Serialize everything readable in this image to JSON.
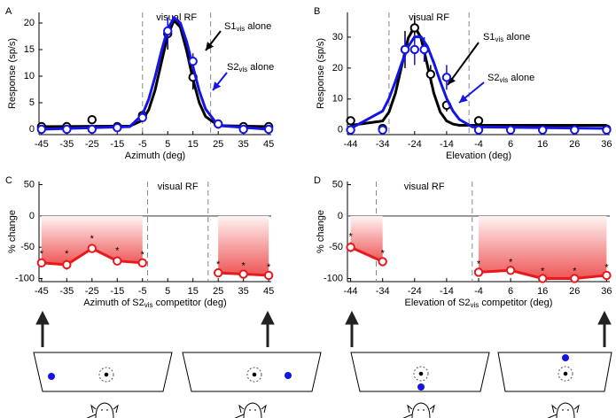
{
  "chart_data": [
    {
      "type": "line",
      "panel": "A",
      "xlabel": "Azimuth (deg)",
      "ylabel": "Response (sp/s)",
      "xlim": [
        -46,
        46
      ],
      "ylim": [
        -1,
        22
      ],
      "xticks": [
        -45,
        -35,
        -25,
        -15,
        -5,
        5,
        15,
        25,
        35,
        45
      ],
      "yticks": [
        0,
        5,
        10,
        15,
        20
      ],
      "region": [
        -5,
        22
      ],
      "region_label": "visual RF",
      "series": [
        {
          "name": "S1vis alone",
          "color": "#000000",
          "x": [
            -45,
            -35,
            -25,
            -15,
            -5,
            5,
            15,
            25,
            35,
            45
          ],
          "values": [
            0.5,
            0.5,
            1.8,
            0.5,
            2.6,
            18,
            9.8,
            1,
            0.5,
            0.5
          ],
          "errors": [
            0.2,
            0.2,
            0.4,
            0.2,
            0.5,
            3,
            2.3,
            0.3,
            0.2,
            0.2
          ],
          "fit": {
            "x": [
              -45,
              -10,
              -5,
              -2.5,
              0,
              2.5,
              5,
              7.5,
              10,
              12.5,
              15,
              17.5,
              20,
              25,
              45
            ],
            "values": [
              0.5,
              0.6,
              1.7,
              3.7,
              7.4,
              12.6,
              17.7,
              20.5,
              19.2,
              14.8,
              9.4,
              5.0,
              2.4,
              0.7,
              0.5
            ]
          }
        },
        {
          "name": "S2vis alone",
          "color": "#1414e6",
          "x": [
            -45,
            -35,
            -25,
            -15,
            -5,
            5,
            15,
            25,
            35,
            45
          ],
          "values": [
            0,
            0,
            0,
            0.3,
            2.2,
            18.5,
            12.8,
            1,
            0,
            0
          ],
          "errors": [
            0.2,
            0.2,
            0.2,
            0.2,
            0.4,
            2.6,
            1.5,
            0.3,
            0.2,
            0.2
          ],
          "fit": {
            "x": [
              -45,
              -10,
              -5,
              -2.5,
              0,
              2.5,
              5,
              7.5,
              10,
              12.5,
              15,
              17.5,
              20,
              25,
              45
            ],
            "values": [
              0,
              0.5,
              2.8,
              5.7,
              9.9,
              14.7,
              18.9,
              21,
              20,
              16.5,
              11.8,
              7.2,
              3.8,
              0.7,
              0
            ]
          }
        }
      ]
    },
    {
      "type": "line",
      "panel": "B",
      "xlabel": "Elevation (deg)",
      "ylabel": "Response (sp/s)",
      "xlim": [
        -45,
        37
      ],
      "ylim": [
        -1.5,
        38
      ],
      "xticks": [
        -44,
        -34,
        -24,
        -14,
        -4,
        6,
        16,
        26,
        36
      ],
      "yticks": [
        0,
        10,
        20,
        30
      ],
      "region": [
        -32,
        -7
      ],
      "region_label": "visual RF",
      "series": [
        {
          "name": "S1vis alone",
          "color": "#000000",
          "x": [
            -44,
            -34,
            -27,
            -24,
            -19,
            -14,
            -4,
            6,
            16,
            26,
            36
          ],
          "values": [
            3,
            0.5,
            26,
            33,
            18,
            8,
            3,
            0.3,
            0.3,
            0.3,
            0.3
          ],
          "errors": [
            0.5,
            0.3,
            6,
            4,
            3,
            2,
            0.5,
            0.2,
            0.2,
            0.2,
            0.2
          ],
          "fit": {
            "x": [
              -44,
              -34,
              -32,
              -30,
              -28,
              -26,
              -24,
              -22,
              -20,
              -18,
              -16,
              -14,
              -12,
              -10,
              -6,
              36
            ],
            "values": [
              1.5,
              2.9,
              5.8,
              11.9,
              20.9,
              29.7,
              33.5,
              29.7,
              20.9,
              11.9,
              5.8,
              2.9,
              1.9,
              1.5,
              1.5,
              1.5
            ]
          }
        },
        {
          "name": "S2vis alone",
          "color": "#1414e6",
          "x": [
            -44,
            -34,
            -27,
            -24,
            -21,
            -14,
            -4,
            6,
            16,
            26,
            36
          ],
          "values": [
            0,
            0,
            26,
            26,
            26,
            17,
            0,
            0,
            0,
            0,
            0
          ],
          "errors": [
            0.3,
            0.3,
            4,
            5,
            4,
            4,
            0.3,
            0.3,
            0.3,
            0.3,
            0.3
          ],
          "fit": {
            "x": [
              -44,
              -34,
              -32,
              -30,
              -28,
              -26,
              -24,
              -22,
              -20,
              -18,
              -16,
              -14,
              -12,
              -10,
              -6,
              36
            ],
            "values": [
              0.5,
              6.1,
              10.2,
              15.7,
              21.7,
              27,
              30.1,
              30.1,
              27,
              21.7,
              15.7,
              10.2,
              6.1,
              3.4,
              1,
              0.5
            ]
          }
        }
      ]
    },
    {
      "type": "line",
      "panel": "C",
      "xlabel": "Azimuth of S2vis competitor (deg)",
      "ylabel": "% change",
      "xlim": [
        -46,
        46
      ],
      "ylim": [
        -105,
        55
      ],
      "xticks": [
        -45,
        -35,
        -25,
        -15,
        -5,
        5,
        15,
        25,
        35,
        45
      ],
      "yticks": [
        -100,
        -50,
        0,
        50
      ],
      "region": [
        -3,
        21
      ],
      "region_label": "visual RF",
      "zero_line": true,
      "connect_points": true,
      "shade": true,
      "significance_label": "*",
      "series": [
        {
          "color": "#e8191c",
          "x": [
            -45,
            -35,
            -25,
            -15,
            -5
          ],
          "values": [
            -75,
            -78,
            -52,
            -72,
            -75
          ],
          "errors": [
            5,
            8,
            6,
            7,
            4
          ]
        },
        {
          "color": "#e8191c",
          "x": [
            25,
            35,
            45
          ],
          "values": [
            -91,
            -93,
            -95
          ],
          "errors": [
            4,
            4,
            4
          ]
        }
      ]
    },
    {
      "type": "line",
      "panel": "D",
      "xlabel": "Elevation of S2vis competitor (deg)",
      "ylabel": "% change",
      "xlim": [
        -45,
        37
      ],
      "ylim": [
        -105,
        55
      ],
      "xticks": [
        -44,
        -34,
        -24,
        -14,
        -4,
        6,
        16,
        26,
        36
      ],
      "yticks": [
        -100,
        -50,
        0,
        50
      ],
      "region": [
        -36,
        -6
      ],
      "region_label": "visual RF",
      "zero_line": true,
      "connect_points": true,
      "shade": true,
      "significance_label": "*",
      "series": [
        {
          "color": "#e8191c",
          "x": [
            -44,
            -34
          ],
          "values": [
            -50,
            -73
          ],
          "errors": [
            8,
            4
          ]
        },
        {
          "color": "#e8191c",
          "x": [
            -4,
            6,
            16,
            26,
            36
          ],
          "values": [
            -90,
            -87,
            -100,
            -100,
            -95
          ],
          "errors": [
            4,
            4,
            3,
            3,
            3
          ]
        }
      ]
    }
  ]
}
